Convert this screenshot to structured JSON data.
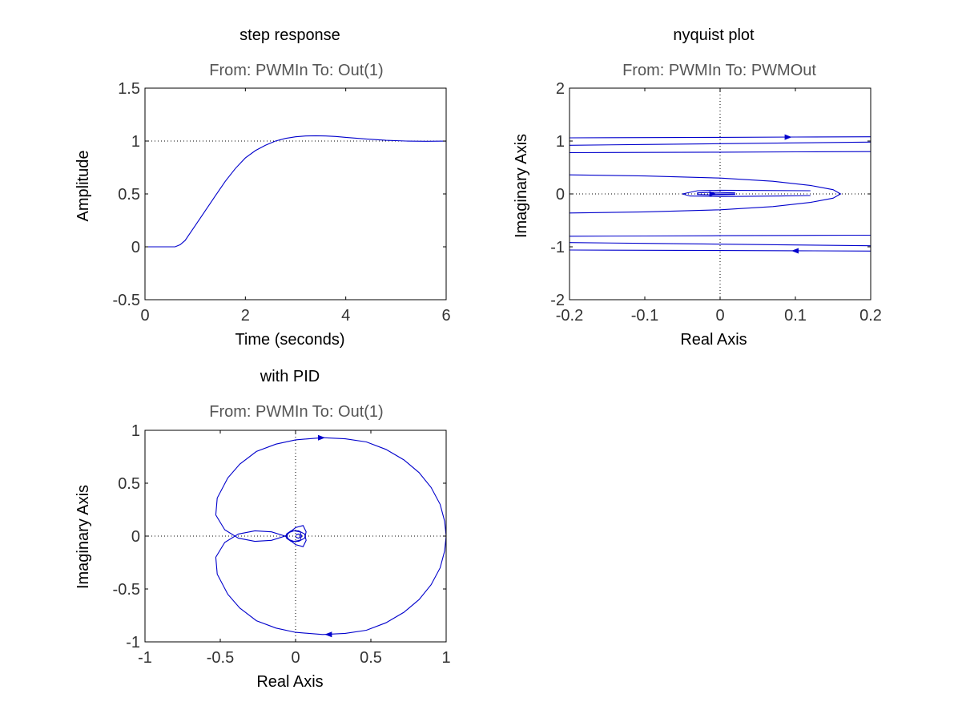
{
  "chart_data": [
    {
      "id": "step",
      "type": "line",
      "title": "step response",
      "subtitle": "From: PWMIn  To: Out(1)",
      "xlabel": "Time (seconds)",
      "ylabel": "Amplitude",
      "xlim": [
        0,
        6
      ],
      "ylim": [
        -0.5,
        1.5
      ],
      "xticks": [
        "0",
        "2",
        "4",
        "6"
      ],
      "yticks": [
        "-0.5",
        "0",
        "0.5",
        "1",
        "1.5"
      ],
      "reference_line": {
        "axis": "y",
        "value": 1,
        "style": "dotted"
      },
      "grid": false,
      "series": [
        {
          "x": [
            0,
            0.6,
            0.7,
            0.8,
            0.9,
            1.0,
            1.2,
            1.4,
            1.6,
            1.8,
            2.0,
            2.2,
            2.4,
            2.6,
            2.8,
            3.0,
            3.2,
            3.4,
            3.6,
            3.8,
            4.0,
            4.4,
            4.8,
            5.2,
            5.6,
            6.0
          ],
          "y": [
            0,
            0,
            0.02,
            0.06,
            0.13,
            0.2,
            0.34,
            0.48,
            0.62,
            0.74,
            0.84,
            0.91,
            0.96,
            1.0,
            1.025,
            1.04,
            1.048,
            1.05,
            1.048,
            1.043,
            1.035,
            1.02,
            1.007,
            1.0,
            0.998,
            0.999
          ]
        }
      ]
    },
    {
      "id": "nyquist",
      "type": "line",
      "title": "nyquist plot",
      "subtitle": "From: PWMIn  To: PWMOut",
      "xlabel": "Real Axis",
      "ylabel": "Imaginary Axis",
      "xlim": [
        -0.2,
        0.2
      ],
      "ylim": [
        -2,
        2
      ],
      "xticks": [
        "-0.2",
        "-0.1",
        "0",
        "0.1",
        "0.2"
      ],
      "yticks": [
        "-2",
        "-1",
        "0",
        "1",
        "2"
      ],
      "crosshair": true,
      "grid": false,
      "series": [
        {
          "x": [
            -0.2,
            -0.1,
            0.0,
            0.1,
            0.2
          ],
          "y": [
            1.06,
            1.065,
            1.07,
            1.075,
            1.08
          ]
        },
        {
          "x": [
            0.2,
            0.1,
            0.0,
            -0.1,
            -0.2
          ],
          "y": [
            0.98,
            0.965,
            0.95,
            0.935,
            0.92
          ]
        },
        {
          "x": [
            -0.2,
            -0.1,
            0.0,
            0.1,
            0.2
          ],
          "y": [
            0.78,
            0.785,
            0.79,
            0.795,
            0.8
          ]
        },
        {
          "x": [
            -0.2,
            -0.1,
            0.0,
            0.07,
            0.12,
            0.15,
            0.16,
            0.15,
            0.12,
            0.07,
            0.0,
            -0.1,
            -0.2
          ],
          "y": [
            0.36,
            0.34,
            0.3,
            0.24,
            0.16,
            0.08,
            0.0,
            -0.08,
            -0.16,
            -0.24,
            -0.3,
            -0.34,
            -0.36
          ]
        },
        {
          "x": [
            0.12,
            0.0,
            -0.03,
            -0.05,
            -0.04,
            0.0,
            0.08,
            0.12
          ],
          "y": [
            0.06,
            0.07,
            0.06,
            0.0,
            -0.04,
            -0.05,
            -0.04,
            -0.03
          ]
        },
        {
          "x": [
            0.02,
            -0.01,
            -0.03,
            -0.03,
            -0.01,
            0.02
          ],
          "y": [
            0.02,
            0.03,
            0.02,
            -0.01,
            -0.02,
            -0.01
          ]
        },
        {
          "x": [
            -0.01,
            0.02
          ],
          "y": [
            0.0,
            0.0
          ]
        },
        {
          "x": [
            -0.2,
            -0.1,
            0.0,
            0.1,
            0.2
          ],
          "y": [
            -0.8,
            -0.795,
            -0.79,
            -0.785,
            -0.78
          ]
        },
        {
          "x": [
            -0.2,
            -0.1,
            0.0,
            0.1,
            0.2
          ],
          "y": [
            -0.92,
            -0.935,
            -0.95,
            -0.965,
            -0.98
          ]
        },
        {
          "x": [
            0.2,
            0.1,
            0.0,
            -0.1,
            -0.2
          ],
          "y": [
            -1.08,
            -1.075,
            -1.07,
            -1.065,
            -1.06
          ]
        }
      ],
      "arrows": [
        {
          "x": 0.09,
          "y": 1.073,
          "direction": "right"
        },
        {
          "x": 0.1,
          "y": -1.075,
          "direction": "left"
        },
        {
          "x": -0.01,
          "y": 0.0,
          "direction": "right"
        }
      ]
    },
    {
      "id": "pid",
      "type": "line",
      "title": "with PID",
      "subtitle": "From: PWMIn  To: Out(1)",
      "xlabel": "Real Axis",
      "ylabel": "Imaginary Axis",
      "xlim": [
        -1,
        1
      ],
      "ylim": [
        -1,
        1
      ],
      "xticks": [
        "-1",
        "-0.5",
        "0",
        "0.5",
        "1"
      ],
      "yticks": [
        "-1",
        "-0.5",
        "0",
        "0.5",
        "1"
      ],
      "crosshair": true,
      "grid": false,
      "series": [
        {
          "x": [
            1.0,
            0.99,
            0.96,
            0.9,
            0.82,
            0.72,
            0.6,
            0.47,
            0.33,
            0.18,
            0.0,
            -0.13,
            -0.26,
            -0.37,
            -0.45,
            -0.52,
            -0.53,
            -0.47,
            -0.38,
            -0.27,
            -0.16,
            -0.07,
            0.0,
            0.05,
            0.07,
            0.06,
            0.02,
            -0.03,
            -0.06,
            -0.05,
            -0.01,
            0.03,
            0.04,
            0.02,
            0.0
          ],
          "y": [
            0.0,
            0.14,
            0.3,
            0.46,
            0.6,
            0.72,
            0.82,
            0.89,
            0.92,
            0.93,
            0.91,
            0.87,
            0.8,
            0.68,
            0.55,
            0.36,
            0.2,
            0.06,
            -0.02,
            -0.05,
            -0.04,
            0.0,
            0.08,
            0.1,
            0.04,
            -0.02,
            -0.05,
            -0.05,
            -0.02,
            0.03,
            0.05,
            0.04,
            0.0,
            -0.02,
            -0.01
          ]
        },
        {
          "x": [
            1.0,
            0.99,
            0.96,
            0.9,
            0.82,
            0.72,
            0.6,
            0.47,
            0.33,
            0.18,
            0.0,
            -0.13,
            -0.26,
            -0.37,
            -0.45,
            -0.52,
            -0.53,
            -0.47,
            -0.38,
            -0.27,
            -0.16,
            -0.07,
            0.0,
            0.05,
            0.07,
            0.06,
            0.02,
            -0.03,
            -0.06,
            -0.05,
            -0.01,
            0.03,
            0.04,
            0.02,
            0.0
          ],
          "y": [
            0.0,
            -0.14,
            -0.3,
            -0.46,
            -0.6,
            -0.72,
            -0.82,
            -0.89,
            -0.92,
            -0.93,
            -0.91,
            -0.87,
            -0.8,
            -0.68,
            -0.55,
            -0.36,
            -0.2,
            -0.06,
            0.02,
            0.05,
            0.04,
            0.0,
            -0.08,
            -0.1,
            -0.04,
            0.02,
            0.05,
            0.05,
            0.02,
            -0.03,
            -0.05,
            -0.04,
            0.0,
            0.02,
            0.01
          ]
        }
      ],
      "arrows": [
        {
          "x": 0.17,
          "y": 0.93,
          "direction": "right"
        },
        {
          "x": 0.22,
          "y": -0.93,
          "direction": "left"
        }
      ]
    }
  ]
}
